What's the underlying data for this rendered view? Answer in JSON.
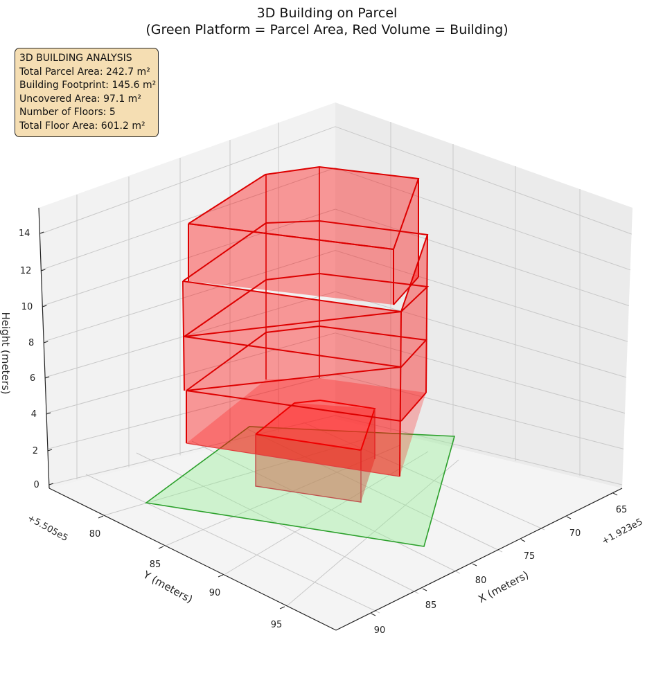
{
  "chart_data": {
    "type": "3d",
    "title_lines": [
      "3D Building on Parcel",
      "(Green Platform = Parcel Area, Red Volume = Building)"
    ],
    "xlabel": "X (meters)",
    "ylabel": "Y (meters)",
    "zlabel": "Height (meters)",
    "x_offset_label": "+1.923e5",
    "y_offset_label": "+5.505e5",
    "x_ticks": [
      "65",
      "70",
      "75",
      "80",
      "85",
      "90"
    ],
    "y_ticks": [
      "80",
      "85",
      "90",
      "95"
    ],
    "z_ticks": [
      "0",
      "2",
      "4",
      "6",
      "8",
      "10",
      "12",
      "14"
    ],
    "zlim": [
      0,
      15
    ],
    "grid": true,
    "info_box": {
      "lines": [
        "3D BUILDING ANALYSIS",
        "Total Parcel Area: 242.7 m²",
        "Building Footprint: 145.6 m²",
        "Uncovered Area: 97.1 m²",
        "Number of Floors: 5",
        "Total Floor Area: 601.2 m²"
      ]
    },
    "parcel": {
      "name": "Parcel Area",
      "color": "#2ca02c",
      "fill": "#90ee90"
    },
    "building": {
      "name": "Building",
      "color": "#dd0000",
      "fill": "#ff0000",
      "floors": 5
    }
  }
}
